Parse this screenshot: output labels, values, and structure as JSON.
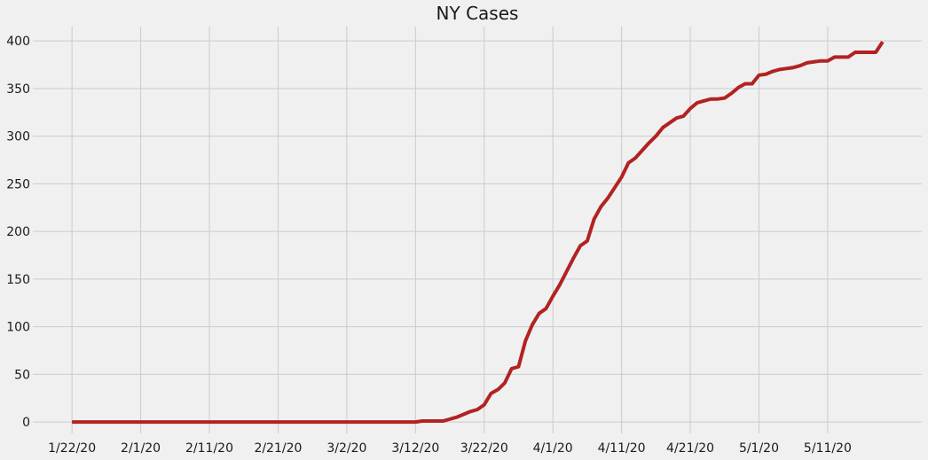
{
  "chart_data": {
    "type": "line",
    "title": "NY Cases",
    "xlabel": "",
    "ylabel": "",
    "ylim": [
      -12,
      415
    ],
    "yticks": [
      0,
      50,
      100,
      150,
      200,
      250,
      300,
      350,
      400
    ],
    "ytick_labels": [
      "0",
      "50",
      "100",
      "150",
      "200",
      "250",
      "300",
      "350",
      "400"
    ],
    "xticks": [
      "1/22/20",
      "2/1/20",
      "2/11/20",
      "2/21/20",
      "3/2/20",
      "3/12/20",
      "3/22/20",
      "4/1/20",
      "4/11/20",
      "4/21/20",
      "5/1/20",
      "5/11/20"
    ],
    "grid": true,
    "series": [
      {
        "color": "#b22222",
        "x": [
          "1/22/20",
          "1/23/20",
          "1/24/20",
          "1/25/20",
          "1/26/20",
          "1/27/20",
          "1/28/20",
          "1/29/20",
          "1/30/20",
          "1/31/20",
          "2/1/20",
          "2/2/20",
          "2/3/20",
          "2/4/20",
          "2/5/20",
          "2/6/20",
          "2/7/20",
          "2/8/20",
          "2/9/20",
          "2/10/20",
          "2/11/20",
          "2/12/20",
          "2/13/20",
          "2/14/20",
          "2/15/20",
          "2/16/20",
          "2/17/20",
          "2/18/20",
          "2/19/20",
          "2/20/20",
          "2/21/20",
          "2/22/20",
          "2/23/20",
          "2/24/20",
          "2/25/20",
          "2/26/20",
          "2/27/20",
          "2/28/20",
          "2/29/20",
          "3/1/20",
          "3/2/20",
          "3/3/20",
          "3/4/20",
          "3/5/20",
          "3/6/20",
          "3/7/20",
          "3/8/20",
          "3/9/20",
          "3/10/20",
          "3/11/20",
          "3/12/20",
          "3/13/20",
          "3/14/20",
          "3/15/20",
          "3/16/20",
          "3/17/20",
          "3/18/20",
          "3/19/20",
          "3/20/20",
          "3/21/20",
          "3/22/20",
          "3/23/20",
          "3/24/20",
          "3/25/20",
          "3/26/20",
          "3/27/20",
          "3/28/20",
          "3/29/20",
          "3/30/20",
          "3/31/20",
          "4/1/20",
          "4/2/20",
          "4/3/20",
          "4/4/20",
          "4/5/20",
          "4/6/20",
          "4/7/20",
          "4/8/20",
          "4/9/20",
          "4/10/20",
          "4/11/20",
          "4/12/20",
          "4/13/20",
          "4/14/20",
          "4/15/20",
          "4/16/20",
          "4/17/20",
          "4/18/20",
          "4/19/20",
          "4/20/20",
          "4/21/20",
          "4/22/20",
          "4/23/20",
          "4/24/20",
          "4/25/20",
          "4/26/20",
          "4/27/20",
          "4/28/20",
          "4/29/20",
          "4/30/20",
          "5/1/20",
          "5/2/20",
          "5/3/20",
          "5/4/20",
          "5/5/20",
          "5/6/20",
          "5/7/20",
          "5/8/20",
          "5/9/20",
          "5/10/20",
          "5/11/20",
          "5/12/20",
          "5/13/20",
          "5/14/20",
          "5/15/20",
          "5/16/20",
          "5/17/20",
          "5/18/20",
          "5/19/20"
        ],
        "values": [
          0,
          0,
          0,
          0,
          0,
          0,
          0,
          0,
          0,
          0,
          0,
          0,
          0,
          0,
          0,
          0,
          0,
          0,
          0,
          0,
          0,
          0,
          0,
          0,
          0,
          0,
          0,
          0,
          0,
          0,
          0,
          0,
          0,
          0,
          0,
          0,
          0,
          0,
          0,
          0,
          0,
          0,
          0,
          0,
          0,
          0,
          0,
          0,
          0,
          0,
          0,
          1,
          1,
          1,
          1,
          3,
          5,
          8,
          11,
          13,
          18,
          30,
          34,
          41,
          56,
          58,
          85,
          102,
          114,
          119,
          132,
          144,
          158,
          172,
          185,
          190,
          213,
          226,
          235,
          246,
          257,
          272,
          277,
          285,
          293,
          300,
          309,
          314,
          319,
          321,
          329,
          335,
          337,
          339,
          339,
          340,
          345,
          351,
          355,
          355,
          364,
          365,
          368,
          370,
          371,
          372,
          374,
          377,
          378,
          379,
          379,
          383,
          383,
          383,
          388,
          388,
          388,
          388,
          399
        ]
      }
    ]
  }
}
